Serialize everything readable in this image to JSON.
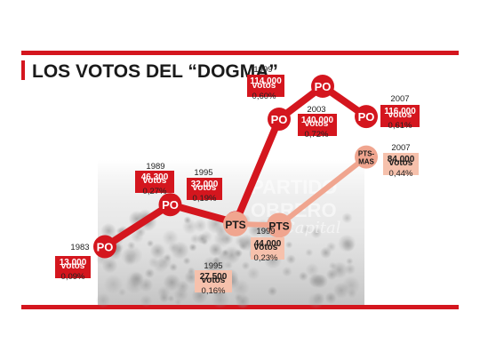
{
  "chart_data": {
    "type": "line",
    "title": "LOS VOTOS DEL “DOGMA”",
    "background_text": [
      "PARTIDO",
      "OBRERO",
      "Capital"
    ],
    "colors": {
      "po": "#d4161e",
      "pts": "#f0a58f",
      "pts_label_bg": "#f6c1ac",
      "frame": "#d4161e"
    },
    "series": [
      {
        "name": "PO",
        "points": [
          {
            "marker": "PO",
            "year": "1983",
            "votes": 13000,
            "votes_text": "13.000",
            "unit": "votos",
            "pct": "0,09%"
          },
          {
            "marker": "PO",
            "year": "1989",
            "votes": 46300,
            "votes_text": "46.300",
            "unit": "votos",
            "pct": "0,27%"
          },
          {
            "marker": "PO",
            "year": "1995",
            "votes": 32000,
            "votes_text": "32.000",
            "unit": "votos",
            "pct": "0,19%"
          },
          {
            "marker": "PO",
            "year": "1999",
            "votes": 114000,
            "votes_text": "114.000",
            "unit": "votos",
            "pct": "0,60%"
          },
          {
            "marker": "PO",
            "year": "2003",
            "votes": 140000,
            "votes_text": "140.000",
            "unit": "votos",
            "pct": "0,72%"
          },
          {
            "marker": "PO",
            "year": "2007",
            "votes": 116000,
            "votes_text": "116.000",
            "unit": "votos",
            "pct": "0,61%"
          }
        ]
      },
      {
        "name": "PTS",
        "points": [
          {
            "marker": "PTS",
            "year": "1995",
            "votes": 27500,
            "votes_text": "27.500",
            "unit": "votos",
            "pct": "0,16%"
          },
          {
            "marker": "PTS",
            "year": "1999",
            "votes": 44000,
            "votes_text": "44.000",
            "unit": "votos",
            "pct": "0,23%"
          },
          {
            "marker": "PTS-MAS",
            "year": "2007",
            "votes": 84000,
            "votes_text": "84.000",
            "unit": "votos",
            "pct": "0,44%"
          }
        ]
      }
    ]
  }
}
